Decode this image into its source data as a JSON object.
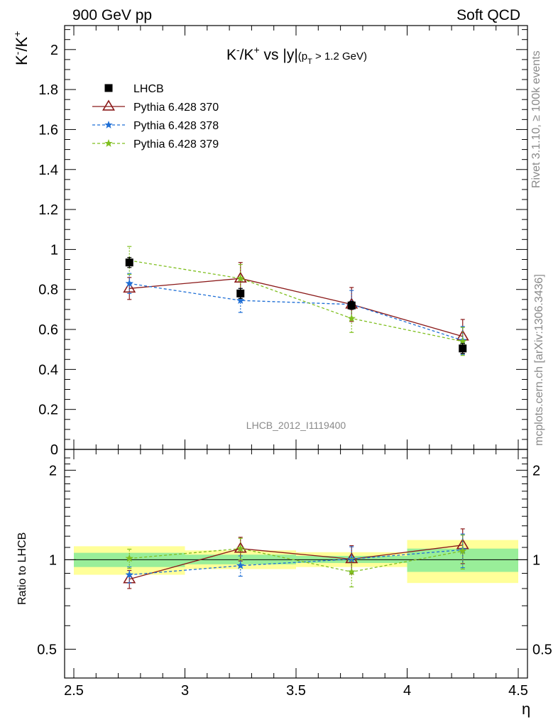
{
  "header": {
    "left": "900 GeV pp",
    "right": "Soft QCD"
  },
  "side_text": {
    "rivet": "Rivet 3.1.10, ≥ 100k events",
    "mcplots": "mcplots.cern.ch [arXiv:1306.3436]"
  },
  "analysis_id": "LHCB_2012_I1119400",
  "chart_data": [
    {
      "type": "line",
      "title": "K⁻/K⁺ vs |y|(pT > 1.2 GeV)",
      "title_parts": {
        "main": "K",
        "sup1": "-",
        "slash": "/K",
        "sup2": "+",
        "rest": " vs |y|",
        "sub_open": "(p",
        "sub_T": "T",
        "sub_rest": " > 1.2 GeV)"
      },
      "ylabel": {
        "base1": "K",
        "sup1": "-",
        "base2": "/K",
        "sup2": "+"
      },
      "xlim": [
        2.5,
        4.5
      ],
      "ylim": [
        0,
        2.12
      ],
      "yticks": [
        0,
        0.2,
        0.4,
        0.6,
        0.8,
        1,
        1.2,
        1.4,
        1.6,
        1.8,
        2
      ],
      "ytick_labels": [
        "0",
        "0.2",
        "0.4",
        "0.6",
        "0.8",
        "1",
        "1.2",
        "1.4",
        "1.6",
        "1.8",
        "2"
      ],
      "legend_position": "top-left",
      "x": [
        2.75,
        3.25,
        3.75,
        4.25
      ],
      "series": [
        {
          "name": "LHCB",
          "color": "#000000",
          "marker": "square",
          "values": [
            0.935,
            0.78,
            0.72,
            0.505
          ],
          "err": [
            0.025,
            0.025,
            0.02,
            0.025
          ],
          "line": "none"
        },
        {
          "name": "Pythia 6.428 370",
          "color": "#8b1a1a",
          "marker": "triangle-open",
          "values": [
            0.805,
            0.855,
            0.725,
            0.565
          ],
          "err": [
            0.055,
            0.08,
            0.085,
            0.085
          ],
          "line": "solid"
        },
        {
          "name": "Pythia 6.428 378",
          "color": "#1f6fd6",
          "marker": "star",
          "values": [
            0.83,
            0.745,
            0.725,
            0.545
          ],
          "err": [
            0.05,
            0.06,
            0.07,
            0.07
          ],
          "line": "dashed"
        },
        {
          "name": "Pythia 6.428 379",
          "color": "#7fbf1f",
          "marker": "star",
          "values": [
            0.945,
            0.855,
            0.655,
            0.54
          ],
          "err": [
            0.07,
            0.07,
            0.07,
            0.07
          ],
          "line": "dashed"
        }
      ]
    },
    {
      "type": "line",
      "ylabel": "Ratio to LHCB",
      "xlabel": "η",
      "xlim": [
        2.5,
        4.5
      ],
      "ylim": [
        0.4,
        2.35
      ],
      "y_scale": "log",
      "yticks": [
        0.5,
        1,
        2
      ],
      "ytick_labels": [
        "0.5",
        "1",
        "2"
      ],
      "xticks": [
        2.5,
        3,
        3.5,
        4,
        4.5
      ],
      "xtick_labels": [
        "2.5",
        "3",
        "3.5",
        "4",
        "4.5"
      ],
      "bins": [
        [
          2.5,
          3.0
        ],
        [
          3.0,
          3.5
        ],
        [
          3.5,
          4.0
        ],
        [
          4.0,
          4.5
        ]
      ],
      "band_1sigma": [
        [
          0.945,
          1.055
        ],
        [
          0.965,
          1.04
        ],
        [
          0.975,
          1.03
        ],
        [
          0.91,
          1.09
        ]
      ],
      "band_2sigma": [
        [
          0.89,
          1.11
        ],
        [
          0.93,
          1.075
        ],
        [
          0.945,
          1.06
        ],
        [
          0.835,
          1.165
        ]
      ],
      "band_1sigma_color": "#99ee99",
      "band_2sigma_color": "#ffff99",
      "x": [
        2.75,
        3.25,
        3.75,
        4.25
      ],
      "series": [
        {
          "name": "Pythia 6.428 370",
          "color": "#8b1a1a",
          "marker": "triangle-open",
          "values": [
            0.86,
            1.09,
            1.005,
            1.12
          ],
          "err": [
            0.06,
            0.1,
            0.11,
            0.15
          ],
          "line": "solid"
        },
        {
          "name": "Pythia 6.428 378",
          "color": "#1f6fd6",
          "marker": "star",
          "values": [
            0.89,
            0.955,
            1.005,
            1.08
          ],
          "err": [
            0.055,
            0.075,
            0.1,
            0.14
          ],
          "line": "dashed"
        },
        {
          "name": "Pythia 6.428 379",
          "color": "#7fbf1f",
          "marker": "star",
          "values": [
            1.01,
            1.09,
            0.91,
            1.07
          ],
          "err": [
            0.075,
            0.09,
            0.1,
            0.14
          ],
          "line": "dashed"
        }
      ]
    }
  ]
}
